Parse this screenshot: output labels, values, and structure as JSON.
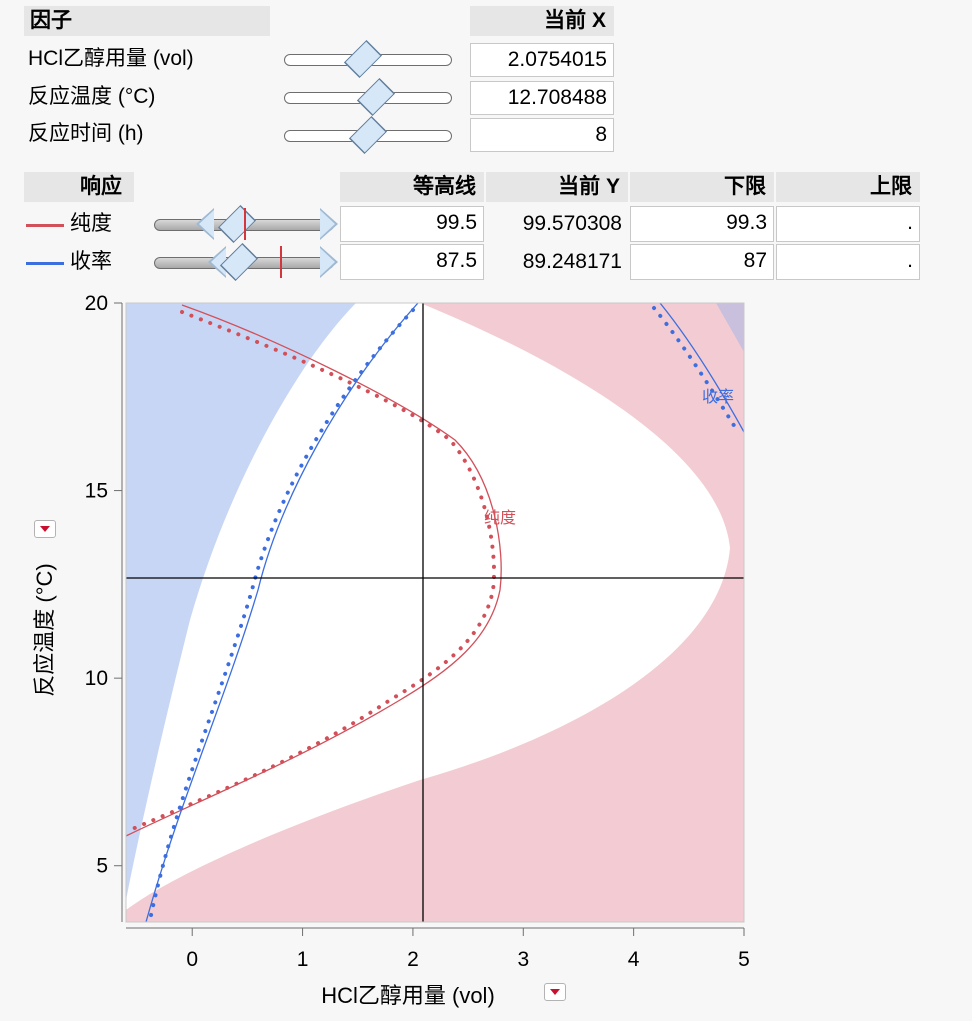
{
  "factors": {
    "header": {
      "name": "因子",
      "current_x": "当前 X"
    },
    "rows": [
      {
        "name": "HCl乙醇用量 (vol)",
        "value": "2.0754015"
      },
      {
        "name": "反应温度 (°C)",
        "value": "12.708488"
      },
      {
        "name": "反应时间 (h)",
        "value": "8"
      }
    ]
  },
  "responses": {
    "header": {
      "name": "响应",
      "contour": "等高线",
      "current_y": "当前 Y",
      "lower": "下限",
      "upper": "上限"
    },
    "rows": [
      {
        "name": "纯度",
        "contour": "99.5",
        "current_y": "99.570308",
        "lower": "99.3",
        "upper": ".",
        "color": "#d2505a"
      },
      {
        "name": "收率",
        "contour": "87.5",
        "current_y": "89.248171",
        "lower": "87",
        "upper": ".",
        "color": "#3c6ee0"
      }
    ]
  },
  "chart_data": {
    "type": "contour",
    "xlabel": "HCl乙醇用量 (vol)",
    "ylabel": "反应温度 (°C)",
    "xlim": [
      -0.6,
      5
    ],
    "ylim": [
      3.5,
      20
    ],
    "xticks": [
      "0",
      "1",
      "2",
      "3",
      "4",
      "5"
    ],
    "yticks": [
      "5",
      "10",
      "15",
      "20"
    ],
    "crosshair": {
      "x": 2.0754015,
      "y": 12.708488
    },
    "series": [
      {
        "name": "纯度",
        "contour": 99.5,
        "color": "#d2505a"
      },
      {
        "name": "收率",
        "contour": 87.5,
        "color": "#3c6ee0"
      }
    ],
    "contour_labels": [
      "纯度",
      "收率"
    ]
  }
}
